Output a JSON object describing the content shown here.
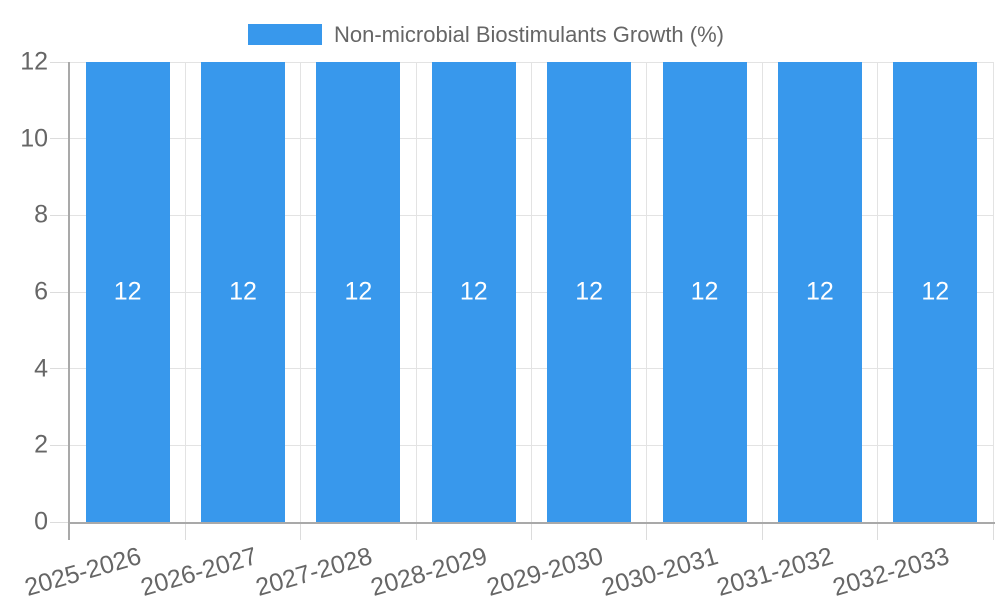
{
  "legend": {
    "items": [
      {
        "label": "Non-microbial Biostimulants Growth (%)",
        "color": "#3898ec"
      }
    ]
  },
  "chart_data": {
    "type": "bar",
    "title": "",
    "legend_entries": [
      "Non-microbial Biostimulants Growth (%)"
    ],
    "legend_position": "top",
    "categories": [
      "2025-2026",
      "2026-2027",
      "2027-2028",
      "2028-2029",
      "2029-2030",
      "2030-2031",
      "2031-2032",
      "2032-2033"
    ],
    "series": [
      {
        "name": "Non-microbial Biostimulants Growth (%)",
        "color": "#3898ec",
        "values": [
          12,
          12,
          12,
          12,
          12,
          12,
          12,
          12
        ],
        "value_labels": [
          "12",
          "12",
          "12",
          "12",
          "12",
          "12",
          "12",
          "12"
        ]
      }
    ],
    "xlabel": "",
    "ylabel": "",
    "ylim": [
      0,
      12
    ],
    "yticks": [
      0,
      2,
      4,
      6,
      8,
      10,
      12
    ],
    "grid": true,
    "x_tick_rotation_deg": -16
  },
  "colors": {
    "background": "#ffffff",
    "bar": "#3898ec",
    "bar_value_label": "#ffffff",
    "axis_text": "#666666",
    "grid_line": "#e3e3e3",
    "tick_line": "#dcdcdc",
    "axis_line": "#a9a9a9"
  }
}
